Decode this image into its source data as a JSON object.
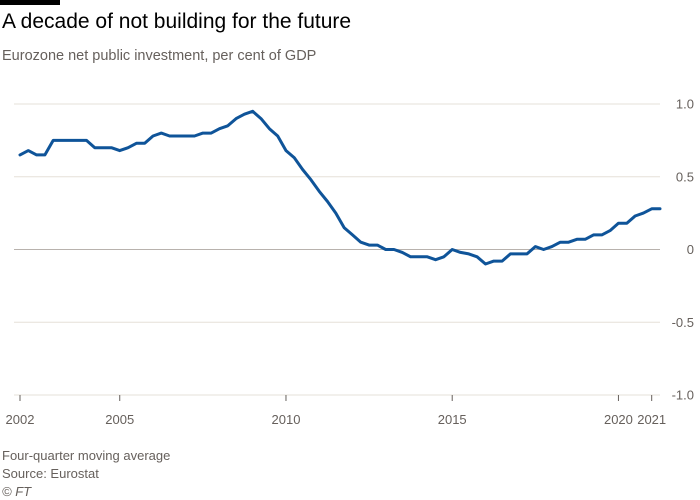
{
  "title": "A decade of not building for the future",
  "subtitle": "Eurozone net public investment, per cent of GDP",
  "footer": {
    "note": "Four-quarter moving average",
    "source": "Source: Eurostat",
    "credit": "© FT"
  },
  "colors": {
    "line": "#0f5499",
    "grid": "#e6e0d8",
    "zero": "#b8b2ad",
    "text": "#66605c",
    "brand_bar": "#000000"
  },
  "chart_data": {
    "type": "line",
    "title": "A decade of not building for the future",
    "subtitle": "Eurozone net public investment, per cent of GDP",
    "xlabel": "",
    "ylabel": "",
    "xlim": [
      2002,
      2021.25
    ],
    "ylim": [
      -1.0,
      1.0
    ],
    "grid": true,
    "y_axis_side": "right",
    "x_ticks": [
      2002,
      2005,
      2010,
      2015,
      2020,
      2021
    ],
    "x_tick_labels": [
      "2002",
      "2005",
      "2010",
      "2015",
      "2020",
      "2021"
    ],
    "y_ticks": [
      1.0,
      0.5,
      0,
      -0.5,
      -1.0
    ],
    "y_tick_labels": [
      "1.0",
      "0.5",
      "0",
      "-0.5",
      "-1.0"
    ],
    "series": [
      {
        "x": [
          2002.0,
          2002.25,
          2002.5,
          2002.75,
          2003.0,
          2003.25,
          2003.5,
          2003.75,
          2004.0,
          2004.25,
          2004.5,
          2004.75,
          2005.0,
          2005.25,
          2005.5,
          2005.75,
          2006.0,
          2006.25,
          2006.5,
          2006.75,
          2007.0,
          2007.25,
          2007.5,
          2007.75,
          2008.0,
          2008.25,
          2008.5,
          2008.75,
          2009.0,
          2009.25,
          2009.5,
          2009.75,
          2010.0,
          2010.25,
          2010.5,
          2010.75,
          2011.0,
          2011.25,
          2011.5,
          2011.75,
          2012.0,
          2012.25,
          2012.5,
          2012.75,
          2013.0,
          2013.25,
          2013.5,
          2013.75,
          2014.0,
          2014.25,
          2014.5,
          2014.75,
          2015.0,
          2015.25,
          2015.5,
          2015.75,
          2016.0,
          2016.25,
          2016.5,
          2016.75,
          2017.0,
          2017.25,
          2017.5,
          2017.75,
          2018.0,
          2018.25,
          2018.5,
          2018.75,
          2019.0,
          2019.25,
          2019.5,
          2019.75,
          2020.0,
          2020.25,
          2020.5,
          2020.75,
          2021.0,
          2021.25
        ],
        "values": [
          0.65,
          0.68,
          0.65,
          0.65,
          0.75,
          0.75,
          0.75,
          0.75,
          0.75,
          0.7,
          0.7,
          0.7,
          0.68,
          0.7,
          0.73,
          0.73,
          0.78,
          0.8,
          0.78,
          0.78,
          0.78,
          0.78,
          0.8,
          0.8,
          0.83,
          0.85,
          0.9,
          0.93,
          0.95,
          0.9,
          0.83,
          0.78,
          0.68,
          0.63,
          0.55,
          0.48,
          0.4,
          0.33,
          0.25,
          0.15,
          0.1,
          0.05,
          0.03,
          0.03,
          0.0,
          0.0,
          -0.02,
          -0.05,
          -0.05,
          -0.05,
          -0.07,
          -0.05,
          0.0,
          -0.02,
          -0.03,
          -0.05,
          -0.1,
          -0.08,
          -0.08,
          -0.03,
          -0.03,
          -0.03,
          0.02,
          0.0,
          0.02,
          0.05,
          0.05,
          0.07,
          0.07,
          0.1,
          0.1,
          0.13,
          0.18,
          0.18,
          0.23,
          0.25,
          0.28,
          0.28
        ]
      }
    ]
  }
}
